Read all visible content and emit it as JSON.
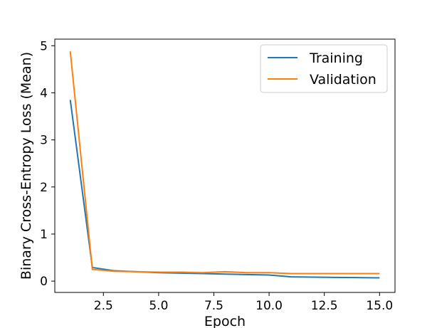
{
  "chart_data": {
    "type": "line",
    "title": "",
    "xlabel": "Epoch",
    "ylabel": "Binary Cross-Entropy Loss (Mean)",
    "xlim": [
      0.3,
      15.7
    ],
    "ylim": [
      -0.24,
      5.14
    ],
    "xticks": [
      2.5,
      5.0,
      7.5,
      10.0,
      12.5,
      15.0
    ],
    "xtick_labels": [
      "2.5",
      "5.0",
      "7.5",
      "10.0",
      "12.5",
      "15.0"
    ],
    "yticks": [
      0,
      1,
      2,
      3,
      4,
      5
    ],
    "ytick_labels": [
      "0",
      "1",
      "2",
      "3",
      "4",
      "5"
    ],
    "grid": false,
    "legend_position": "top-right",
    "x": [
      1,
      2,
      3,
      4,
      5,
      6,
      7,
      8,
      9,
      10,
      11,
      12,
      13,
      14,
      15
    ],
    "series": [
      {
        "name": "Training",
        "color": "#1f77b4",
        "values": [
          3.85,
          0.29,
          0.22,
          0.2,
          0.18,
          0.17,
          0.16,
          0.15,
          0.14,
          0.13,
          0.09,
          0.085,
          0.08,
          0.075,
          0.07
        ]
      },
      {
        "name": "Validation",
        "color": "#ff7f0e",
        "values": [
          4.88,
          0.25,
          0.21,
          0.2,
          0.19,
          0.19,
          0.18,
          0.2,
          0.18,
          0.18,
          0.16,
          0.16,
          0.16,
          0.16,
          0.16
        ]
      }
    ]
  }
}
